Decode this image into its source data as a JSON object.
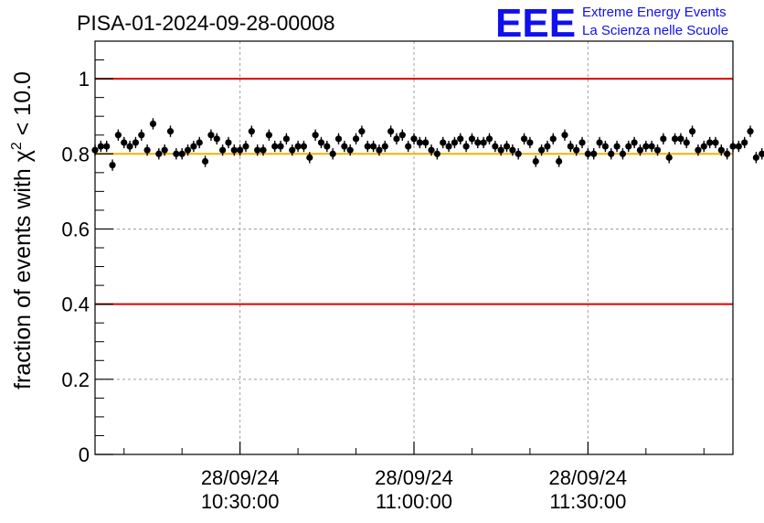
{
  "title": "PISA-01-2024-09-28-00008",
  "logo": {
    "mark": "EEE",
    "line1": "Extreme Energy Events",
    "line2": "La Scienza nelle Scuole",
    "color": "#1010ee"
  },
  "colors": {
    "threshold_lines": "#e00000",
    "reference_line": "#f0b400",
    "markers": "#000000",
    "grid": "#a0a0a0"
  },
  "chart_data": {
    "type": "scatter",
    "title": "PISA-01-2024-09-28-00008",
    "ylabel_prefix": "fraction of events with ",
    "ylabel_symbol": "χ",
    "ylabel_exponent": "2",
    "ylabel_suffix": " < 10.0",
    "xlabel": "",
    "ylim": [
      0,
      1.1
    ],
    "xlim": [
      "2024-09-28 10:05:00",
      "2024-09-28 11:55:00"
    ],
    "y_ticks": [
      "0",
      "0.2",
      "0.4",
      "0.6",
      "0.8",
      "1"
    ],
    "x_ticks": [
      {
        "t": "2024-09-28 10:30:00",
        "date": "28/09/24",
        "time": "10:30:00"
      },
      {
        "t": "2024-09-28 11:00:00",
        "date": "28/09/24",
        "time": "11:00:00"
      },
      {
        "t": "2024-09-28 11:30:00",
        "date": "28/09/24",
        "time": "11:30:00"
      }
    ],
    "grid": true,
    "hlines": [
      {
        "y": 1.0,
        "color": "#e00000"
      },
      {
        "y": 0.8,
        "color": "#f0b400"
      },
      {
        "y": 0.4,
        "color": "#e00000"
      }
    ],
    "x_start": "2024-09-28 10:05:00",
    "x_step_seconds": 60,
    "y_error": 0.015,
    "values": [
      0.81,
      0.82,
      0.82,
      0.77,
      0.85,
      0.83,
      0.82,
      0.83,
      0.85,
      0.81,
      0.88,
      0.8,
      0.81,
      0.86,
      0.8,
      0.8,
      0.81,
      0.82,
      0.83,
      0.78,
      0.85,
      0.84,
      0.81,
      0.83,
      0.81,
      0.81,
      0.82,
      0.86,
      0.81,
      0.81,
      0.85,
      0.82,
      0.82,
      0.84,
      0.81,
      0.82,
      0.82,
      0.79,
      0.85,
      0.83,
      0.82,
      0.8,
      0.84,
      0.82,
      0.81,
      0.84,
      0.86,
      0.82,
      0.82,
      0.81,
      0.82,
      0.86,
      0.84,
      0.85,
      0.82,
      0.84,
      0.83,
      0.83,
      0.81,
      0.8,
      0.83,
      0.82,
      0.83,
      0.84,
      0.82,
      0.84,
      0.83,
      0.83,
      0.84,
      0.82,
      0.81,
      0.82,
      0.81,
      0.8,
      0.84,
      0.83,
      0.78,
      0.81,
      0.82,
      0.84,
      0.78,
      0.85,
      0.82,
      0.81,
      0.83,
      0.8,
      0.8,
      0.83,
      0.82,
      0.8,
      0.82,
      0.8,
      0.82,
      0.83,
      0.81,
      0.82,
      0.82,
      0.81,
      0.84,
      0.79,
      0.84,
      0.84,
      0.83,
      0.86,
      0.81,
      0.82,
      0.83,
      0.83,
      0.81,
      0.8,
      0.82,
      0.82,
      0.83,
      0.86,
      0.79,
      0.8,
      0.82
    ]
  }
}
